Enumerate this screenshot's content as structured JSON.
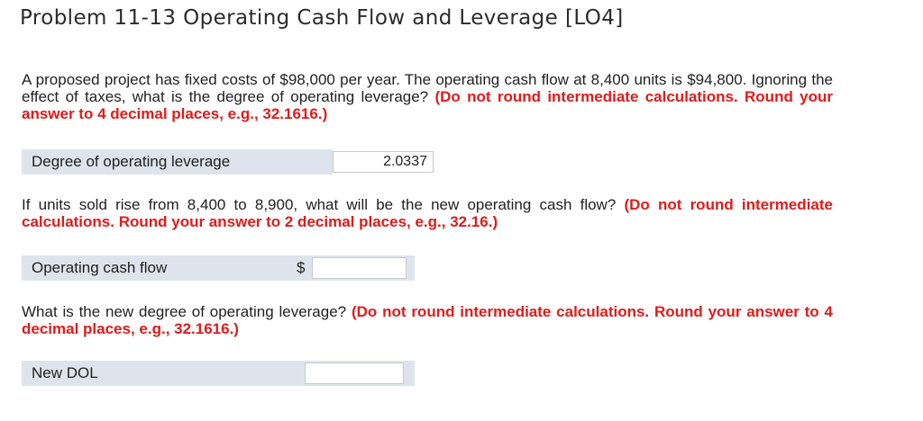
{
  "title": "Problem 11-13 Operating Cash Flow and Leverage [LO4]",
  "q1": {
    "text": "A proposed project has fixed costs of $98,000 per year. The operating cash flow at 8,400 units is $94,800. Ignoring the effect of taxes, what is the degree of operating leverage?",
    "note": "(Do not round intermediate calculations. Round your answer to 4 decimal places, e.g., 32.1616.)",
    "label": "Degree of operating leverage",
    "value": "2.0337"
  },
  "q2": {
    "text": "If units sold rise from 8,400 to 8,900, what will be the new operating cash flow?",
    "note": "(Do not round intermediate calculations. Round your answer to 2 decimal places, e.g., 32.16.)",
    "label": "Operating cash flow",
    "currency": "$",
    "value": ""
  },
  "q3": {
    "text": "What is the new degree of operating leverage?",
    "note": "(Do not round intermediate calculations. Round your answer to 4 decimal places, e.g., 32.1616.)",
    "label": "New DOL",
    "value": ""
  }
}
